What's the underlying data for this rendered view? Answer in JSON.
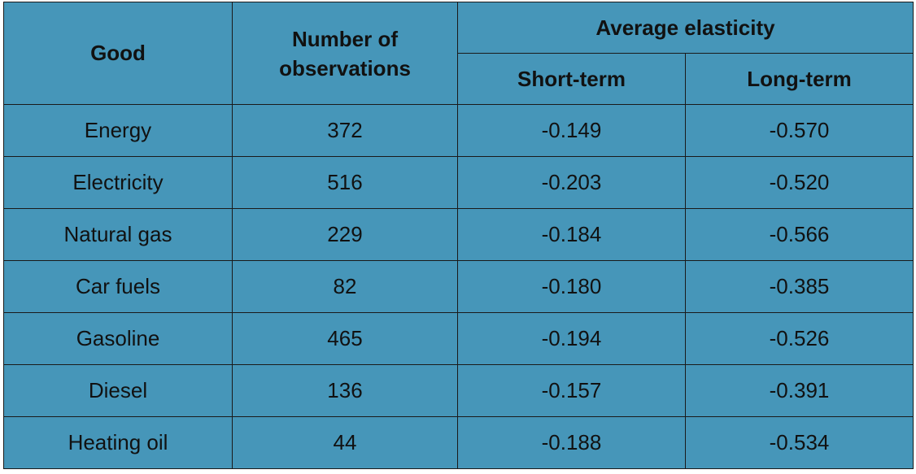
{
  "table": {
    "header": {
      "good": "Good",
      "observations": "Number of observations",
      "elasticity": "Average elasticity",
      "short_term": "Short-term",
      "long_term": "Long-term"
    },
    "rows": [
      [
        "Energy",
        "372",
        "-0.149",
        "-0.570"
      ],
      [
        "Electricity",
        "516",
        "-0.203",
        "-0.520"
      ],
      [
        "Natural gas",
        "229",
        "-0.184",
        "-0.566"
      ],
      [
        "Car fuels",
        "82",
        "-0.180",
        "-0.385"
      ],
      [
        "Gasoline",
        "465",
        "-0.194",
        "-0.526"
      ],
      [
        "Diesel",
        "136",
        "-0.157",
        "-0.391"
      ],
      [
        "Heating oil",
        "44",
        "-0.188",
        "-0.534"
      ]
    ]
  }
}
